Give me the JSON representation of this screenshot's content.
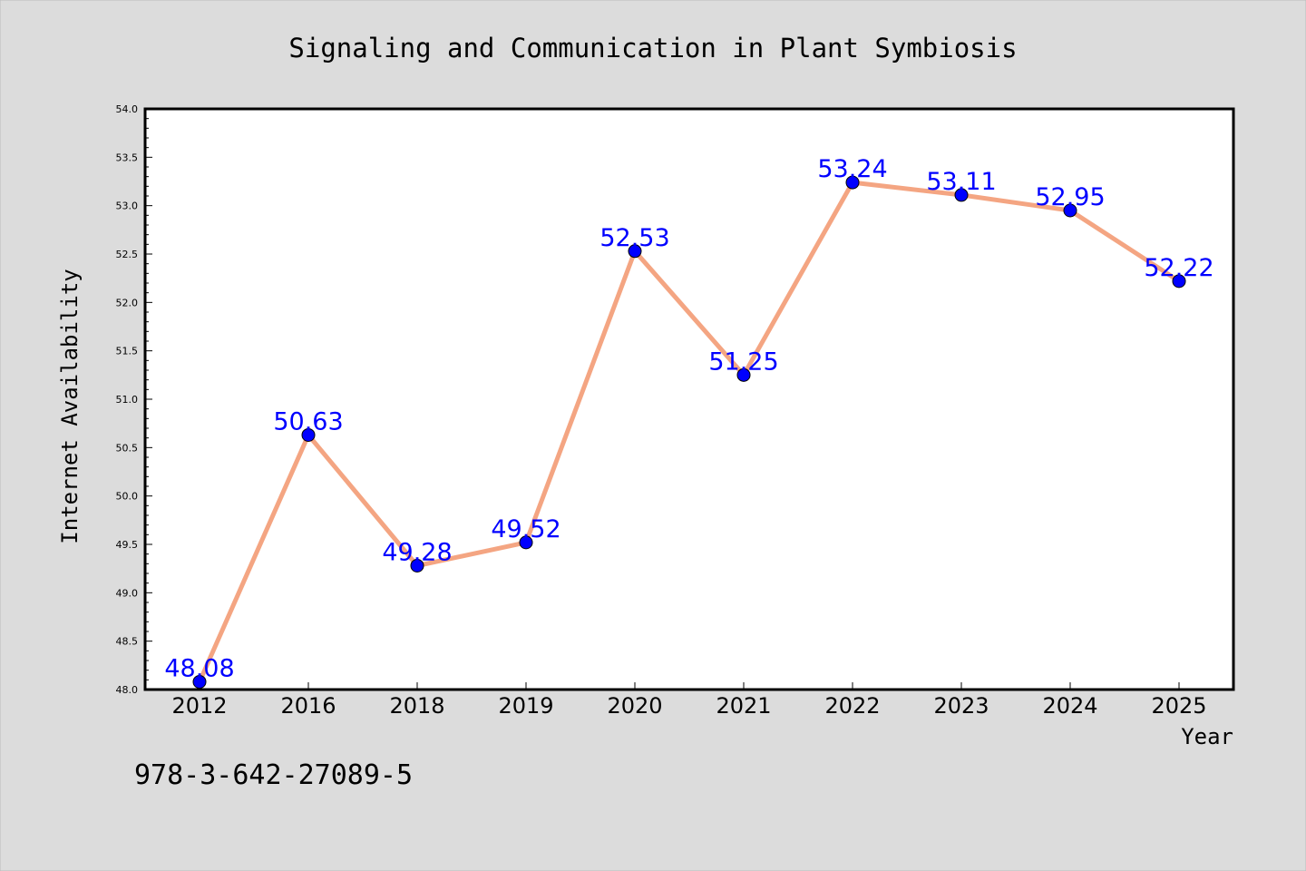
{
  "chart_data": {
    "type": "line",
    "title": "Signaling and Communication in Plant Symbiosis",
    "xlabel": "Year",
    "ylabel": "Internet Availability",
    "categories": [
      "2012",
      "2016",
      "2018",
      "2019",
      "2020",
      "2021",
      "2022",
      "2023",
      "2024",
      "2025"
    ],
    "series": [
      {
        "values": [
          48.08,
          50.63,
          49.28,
          49.52,
          52.53,
          51.25,
          53.24,
          53.11,
          52.95,
          52.22
        ],
        "labels": [
          "48.08",
          "50.63",
          "49.28",
          "49.52",
          "52.53",
          "51.25",
          "53.24",
          "53.11",
          "52.95",
          "52.22"
        ]
      }
    ],
    "ylim": [
      48.0,
      54.0
    ],
    "yticks": [
      "48.0",
      "48.5",
      "49.0",
      "49.5",
      "50.0",
      "50.5",
      "51.0",
      "51.5",
      "52.0",
      "52.5",
      "53.0",
      "53.5",
      "54.0"
    ],
    "grid": false,
    "legend": "none",
    "colors": {
      "figure_background": "#dcdcdc",
      "plot_background": "#ffffff",
      "line": "#f4a582",
      "marker": "#0000ff",
      "data_label": "#0000ff",
      "text": "#000000"
    }
  },
  "annotation": "978-3-642-27089-5"
}
